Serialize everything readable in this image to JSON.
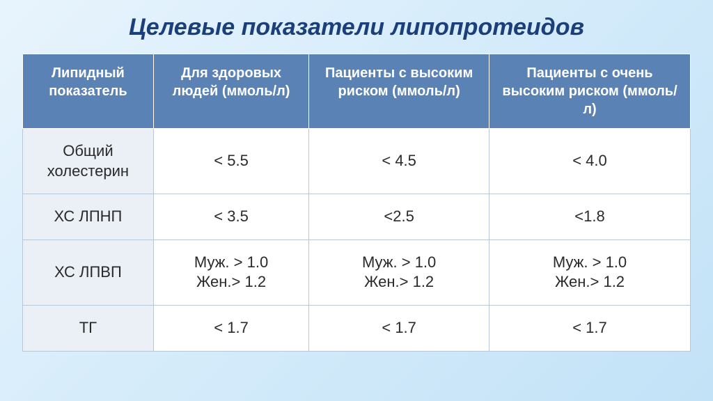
{
  "title": "Целевые показатели липопротеидов",
  "table": {
    "columns": [
      "Липидный показатель",
      "Для здоровых людей (ммоль/л)",
      "Пациенты с высоким риском (ммоль/л)",
      "Пациенты  с очень высоким риском (ммоль/л)"
    ],
    "rows": [
      {
        "label": "Общий холестерин",
        "healthy": "< 5.5",
        "high": "< 4.5",
        "veryhigh": "< 4.0"
      },
      {
        "label": "ХС ЛПНП",
        "healthy": "< 3.5",
        "high": "<2.5",
        "veryhigh": "<1.8"
      },
      {
        "label": "ХС ЛПВП",
        "healthy": "Муж. > 1.0\nЖен.> 1.2",
        "high": "Муж. > 1.0\nЖен.> 1.2",
        "veryhigh": "Муж. > 1.0\nЖен.> 1.2"
      },
      {
        "label": "ТГ",
        "healthy": "< 1.7",
        "high": "< 1.7",
        "veryhigh": "< 1.7"
      }
    ],
    "header_bg": "#5a82b4",
    "header_fg": "#ffffff",
    "rowlabel_bg": "#eaf0f6",
    "cell_bg": "#ffffff",
    "border_color": "#b8c6d6",
    "header_fontsize": 20,
    "cell_fontsize": 22,
    "title_color": "#1a3f7a",
    "title_fontsize": 34
  }
}
